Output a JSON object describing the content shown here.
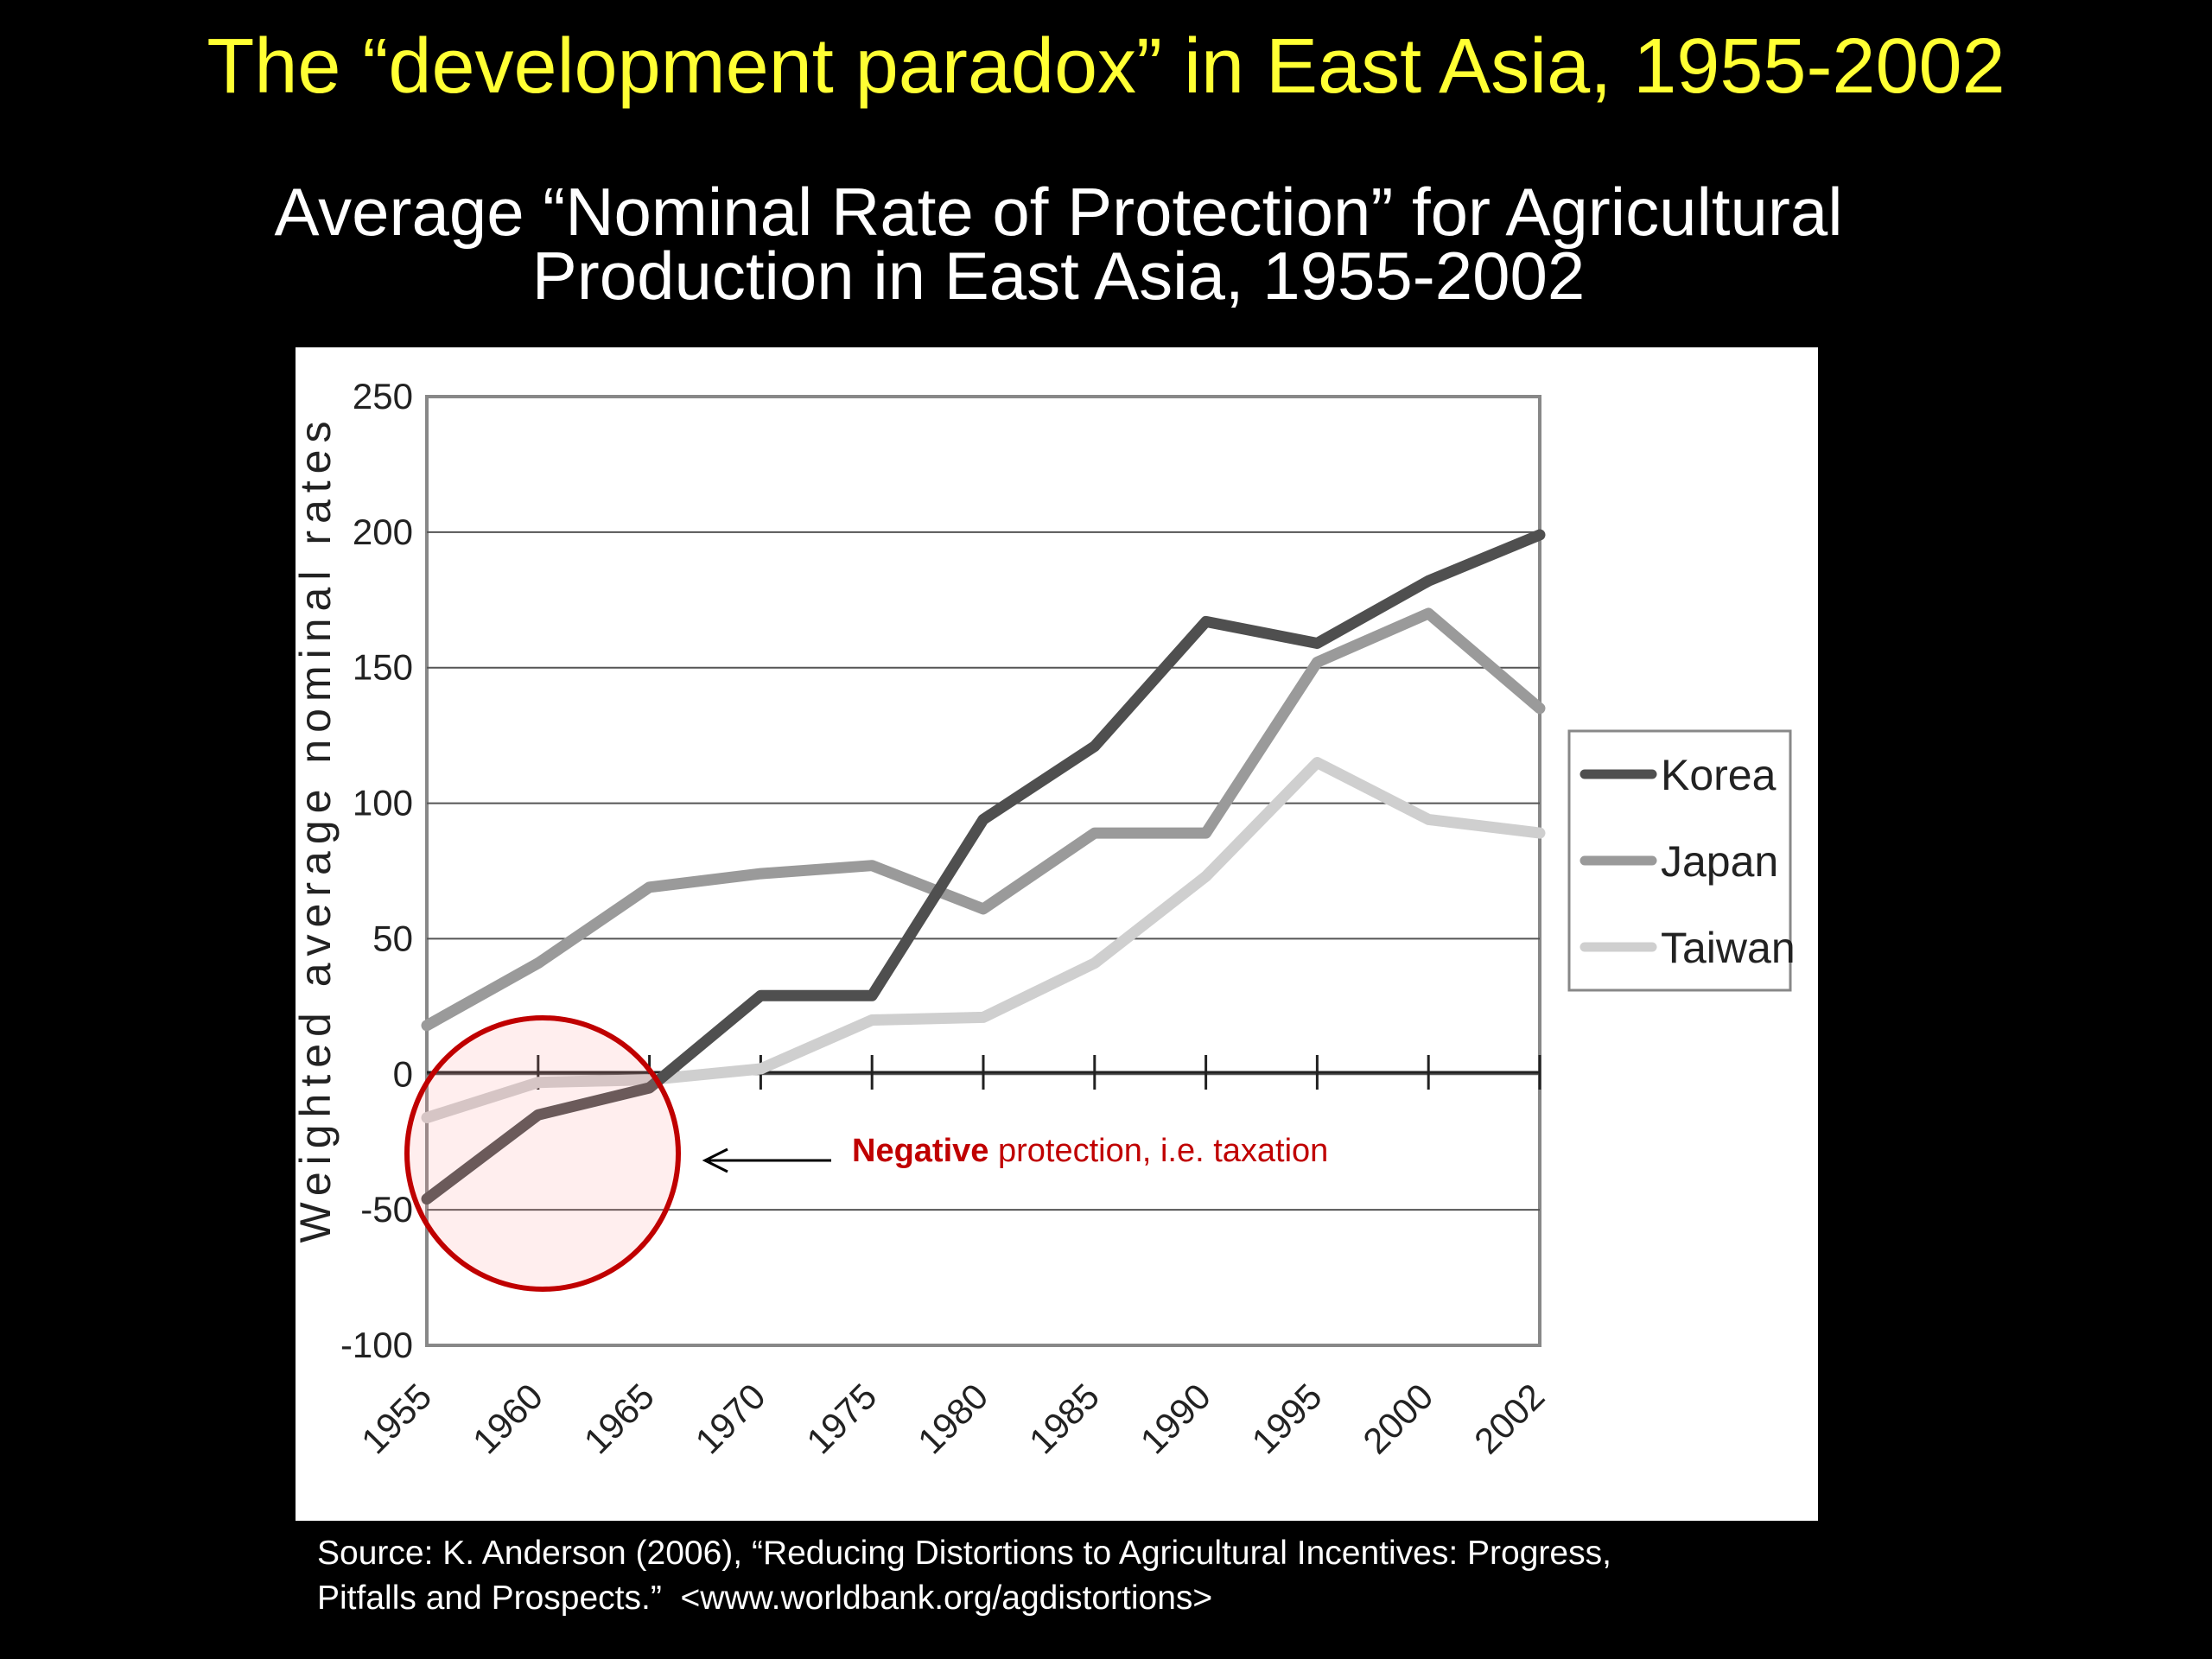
{
  "slide": {
    "title": "The “development paradox” in East Asia, 1955-2002"
  },
  "chart_data": {
    "type": "line",
    "title_lines": [
      "Average “Nominal Rate of Protection” for Agricultural",
      "Production in East Asia, 1955-2002"
    ],
    "xlabel": "",
    "ylabel": "Weighted average nominal rates",
    "categories": [
      "1955",
      "1960",
      "1965",
      "1970",
      "1975",
      "1980",
      "1985",
      "1990",
      "1995",
      "2000",
      "2002"
    ],
    "ylim": [
      -100,
      250
    ],
    "yticks": [
      250,
      200,
      150,
      100,
      50,
      0,
      -50,
      -100
    ],
    "grid": "horizontal",
    "legend_position": "right",
    "series": [
      {
        "name": "Korea",
        "color": "#4f4f4f",
        "values": [
          -46,
          -15,
          -5,
          29,
          29,
          94,
          121,
          167,
          159,
          182,
          199
        ]
      },
      {
        "name": "Japan",
        "color": "#9a9a9a",
        "values": [
          18,
          41,
          69,
          74,
          77,
          61,
          89,
          89,
          152,
          170,
          135
        ]
      },
      {
        "name": "Taiwan",
        "color": "#cfcfcf",
        "values": [
          -16,
          -3,
          -2,
          2,
          20,
          21,
          41,
          73,
          115,
          94,
          89
        ]
      }
    ],
    "annotation": {
      "bold": "Negative",
      "text": " protection, i.e. taxation",
      "color": "#c00000"
    }
  },
  "source": {
    "line1": "Source: K. Anderson (2006), “Reducing Distortions to Agricultural Incentives: Progress,",
    "line2": "Pitfalls and Prospects.”  <www.worldbank.org/agdistortions>"
  }
}
